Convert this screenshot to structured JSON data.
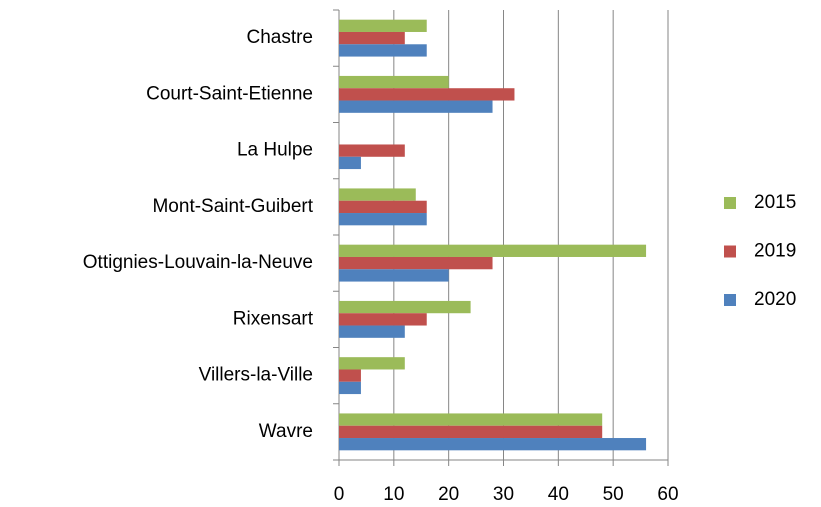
{
  "chart_data": {
    "type": "barh",
    "categories": [
      "Chastre",
      "Court-Saint-Etienne",
      "La Hulpe",
      "Mont-Saint-Guibert",
      "Ottignies-Louvain-la-Neuve",
      "Rixensart",
      "Villers-la-Ville",
      "Wavre"
    ],
    "series": [
      {
        "name": "2015",
        "color": "#9bbb59",
        "values": [
          16,
          20,
          0,
          14,
          56,
          24,
          12,
          48
        ]
      },
      {
        "name": "2019",
        "color": "#c0504d",
        "values": [
          12,
          32,
          12,
          16,
          28,
          16,
          4,
          48
        ]
      },
      {
        "name": "2020",
        "color": "#4f81bd",
        "values": [
          16,
          28,
          4,
          16,
          20,
          12,
          4,
          56
        ]
      }
    ],
    "xlim": [
      0,
      60
    ],
    "xticks": [
      0,
      10,
      20,
      30,
      40,
      50,
      60
    ],
    "grid": true,
    "legend": "right"
  }
}
